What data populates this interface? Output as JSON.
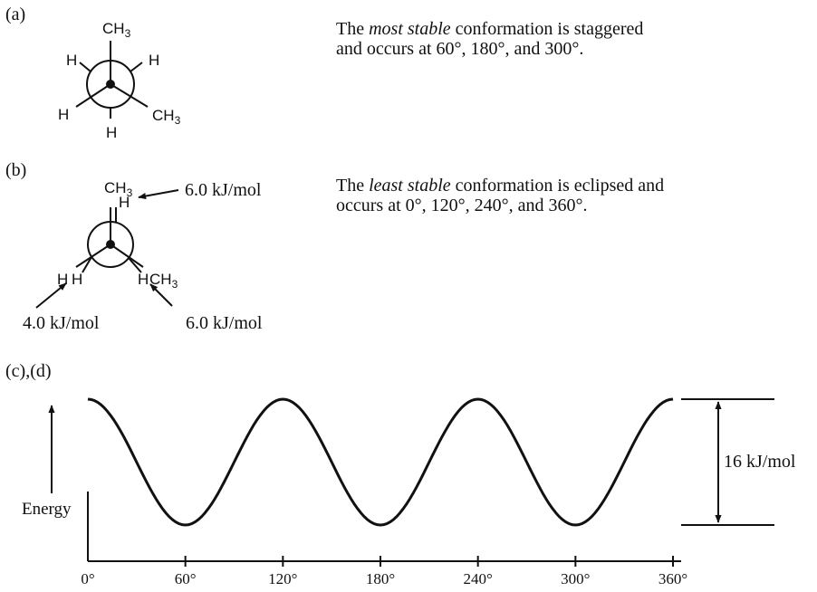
{
  "panel_a": {
    "label": "(a)",
    "atoms": {
      "top_ch": "CH",
      "top_sub": "3",
      "upper_left_h": "H",
      "upper_right_h": "H",
      "lower_left_h": "H",
      "lower_right_ch": "CH",
      "lower_right_sub": "3",
      "bottom_h": "H"
    },
    "text": {
      "prefix": "The ",
      "emph": "most stable",
      "line1_rest": " conformation is staggered",
      "line2": "and occurs at 60°, 180°, and 300°."
    }
  },
  "panel_b": {
    "label": "(b)",
    "atoms": {
      "top_ch": "CH",
      "top_sub": "3",
      "top_back_h": "H",
      "left_front_h": "H",
      "left_back_h": "H",
      "right_front_h": "H",
      "right_back_ch": "CH",
      "right_back_sub": "3"
    },
    "energies": {
      "top": "6.0 kJ/mol",
      "left": "4.0 kJ/mol",
      "right": "6.0 kJ/mol"
    },
    "text": {
      "prefix": "The ",
      "emph": "least stable",
      "line1_rest": " conformation is eclipsed and",
      "line2": "occurs at 0°, 120°, 240°, and 360°."
    }
  },
  "panel_cd": {
    "label": "(c),(d)",
    "y_label": "Energy",
    "barrier_label": "16 kJ/mol"
  },
  "chart_data": {
    "type": "line",
    "xlabel": "",
    "ylabel": "Energy",
    "x_tick_labels": [
      "0°",
      "60°",
      "120°",
      "180°",
      "240°",
      "300°",
      "360°"
    ],
    "xlim": [
      0,
      360
    ],
    "ylim": [
      0,
      16
    ],
    "x": [
      0,
      30,
      60,
      90,
      120,
      150,
      180,
      210,
      240,
      270,
      300,
      330,
      360
    ],
    "y": [
      16,
      8,
      0,
      8,
      16,
      8,
      0,
      8,
      16,
      8,
      0,
      8,
      16
    ],
    "annotation": "16 kJ/mol",
    "grid": false
  }
}
